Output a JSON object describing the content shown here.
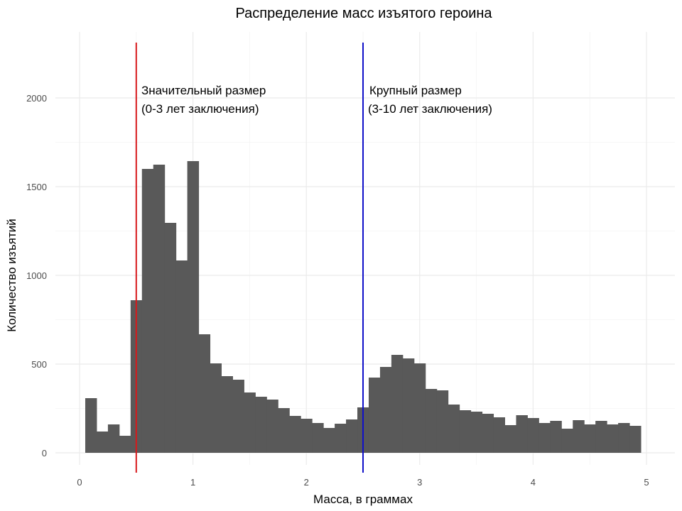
{
  "chart_data": {
    "type": "bar",
    "subtype": "histogram",
    "title": "Распределение масс изъятого героина",
    "xlabel": "Масса, в граммах",
    "ylabel": "Количество изъятий",
    "xlim": [
      -0.2,
      5.25
    ],
    "ylim": [
      -60,
      2250
    ],
    "x_ticks": [
      0,
      1,
      2,
      3,
      4,
      5
    ],
    "y_ticks": [
      0,
      500,
      1000,
      1500,
      2000
    ],
    "bin_width": 0.1,
    "bar_color": "#595959",
    "grid": true,
    "bin_centers": [
      0.1,
      0.2,
      0.3,
      0.4,
      0.5,
      0.6,
      0.7,
      0.8,
      0.9,
      1.0,
      1.1,
      1.2,
      1.3,
      1.4,
      1.5,
      1.6,
      1.7,
      1.8,
      1.9,
      2.0,
      2.1,
      2.2,
      2.3,
      2.4,
      2.5,
      2.6,
      2.7,
      2.8,
      2.9,
      3.0,
      3.1,
      3.2,
      3.3,
      3.4,
      3.5,
      3.6,
      3.7,
      3.8,
      3.9,
      4.0,
      4.1,
      4.2,
      4.3,
      4.4,
      4.5,
      4.6,
      4.7,
      4.8,
      4.9
    ],
    "values": [
      308,
      120,
      160,
      96,
      860,
      1600,
      1624,
      1296,
      1084,
      1644,
      668,
      504,
      432,
      412,
      340,
      316,
      300,
      252,
      208,
      192,
      168,
      140,
      164,
      188,
      256,
      424,
      484,
      552,
      532,
      504,
      360,
      352,
      272,
      240,
      232,
      220,
      200,
      156,
      212,
      196,
      168,
      180,
      136,
      184,
      160,
      180,
      160,
      168,
      152
    ],
    "vlines": [
      {
        "x": 0.5,
        "color": "#d7191c",
        "label_line1": "Значительный размер",
        "label_line2": "(0-3 лет заключения)"
      },
      {
        "x": 2.5,
        "color": "#1010c8",
        "label_line1": "Крупный размер",
        "label_line2": "(3-10 лет заключения)"
      }
    ]
  }
}
